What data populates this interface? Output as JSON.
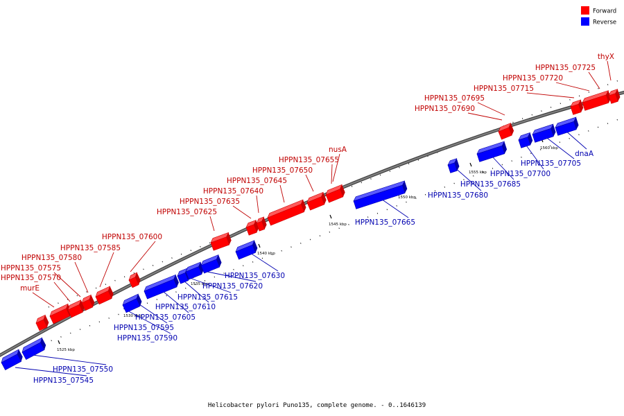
{
  "caption": "Helicobacter pylori Puno135, complete genome. - 0..1646139",
  "legend": {
    "forward_label": "Forward",
    "reverse_label": "Reverse",
    "forward_color": "#ff0000",
    "reverse_color": "#0000ff"
  },
  "colors": {
    "forward": "#ff0000",
    "forward_dark": "#c80000",
    "forward_light": "#ff5a5a",
    "reverse": "#0000ff",
    "reverse_dark": "#0000a8",
    "reverse_light": "#5a5aff",
    "backbone": "#7f7f7f",
    "label_forward": "#c00000",
    "label_reverse": "#0000b0"
  },
  "scale_labels": [
    "1525 kbp",
    "1530 kbp",
    "1535 kbp",
    "1540 kbp",
    "1545 kbp",
    "1550 kbp",
    "1555 kbp",
    "1560 kbp"
  ],
  "genes": [
    {
      "label": "murE",
      "strand": "forward"
    },
    {
      "label": "HPPN135_07570",
      "strand": "forward"
    },
    {
      "label": "HPPN135_07575",
      "strand": "forward"
    },
    {
      "label": "HPPN135_07580",
      "strand": "forward"
    },
    {
      "label": "HPPN135_07585",
      "strand": "forward"
    },
    {
      "label": "HPPN135_07600",
      "strand": "forward"
    },
    {
      "label": "HPPN135_07625",
      "strand": "forward"
    },
    {
      "label": "HPPN135_07635",
      "strand": "forward"
    },
    {
      "label": "HPPN135_07640",
      "strand": "forward"
    },
    {
      "label": "HPPN135_07645",
      "strand": "forward"
    },
    {
      "label": "HPPN135_07650",
      "strand": "forward"
    },
    {
      "label": "HPPN135_07655",
      "strand": "forward"
    },
    {
      "label": "nusA",
      "strand": "forward"
    },
    {
      "label": "HPPN135_07690",
      "strand": "forward"
    },
    {
      "label": "HPPN135_07695",
      "strand": "forward"
    },
    {
      "label": "HPPN135_07715",
      "strand": "forward"
    },
    {
      "label": "HPPN135_07720",
      "strand": "forward"
    },
    {
      "label": "HPPN135_07725",
      "strand": "forward"
    },
    {
      "label": "thyX",
      "strand": "forward"
    },
    {
      "label": "HPPN135_07545",
      "strand": "reverse"
    },
    {
      "label": "HPPN135_07550",
      "strand": "reverse"
    },
    {
      "label": "HPPN135_07590",
      "strand": "reverse"
    },
    {
      "label": "HPPN135_07595",
      "strand": "reverse"
    },
    {
      "label": "HPPN135_07605",
      "strand": "reverse"
    },
    {
      "label": "HPPN135_07610",
      "strand": "reverse"
    },
    {
      "label": "HPPN135_07615",
      "strand": "reverse"
    },
    {
      "label": "HPPN135_07620",
      "strand": "reverse"
    },
    {
      "label": "HPPN135_07630",
      "strand": "reverse"
    },
    {
      "label": "HPPN135_07665",
      "strand": "reverse"
    },
    {
      "label": "HPPN135_07680",
      "strand": "reverse"
    },
    {
      "label": "HPPN135_07685",
      "strand": "reverse"
    },
    {
      "label": "HPPN135_07700",
      "strand": "reverse"
    },
    {
      "label": "HPPN135_07705",
      "strand": "reverse"
    },
    {
      "label": "dnaA",
      "strand": "reverse"
    }
  ]
}
